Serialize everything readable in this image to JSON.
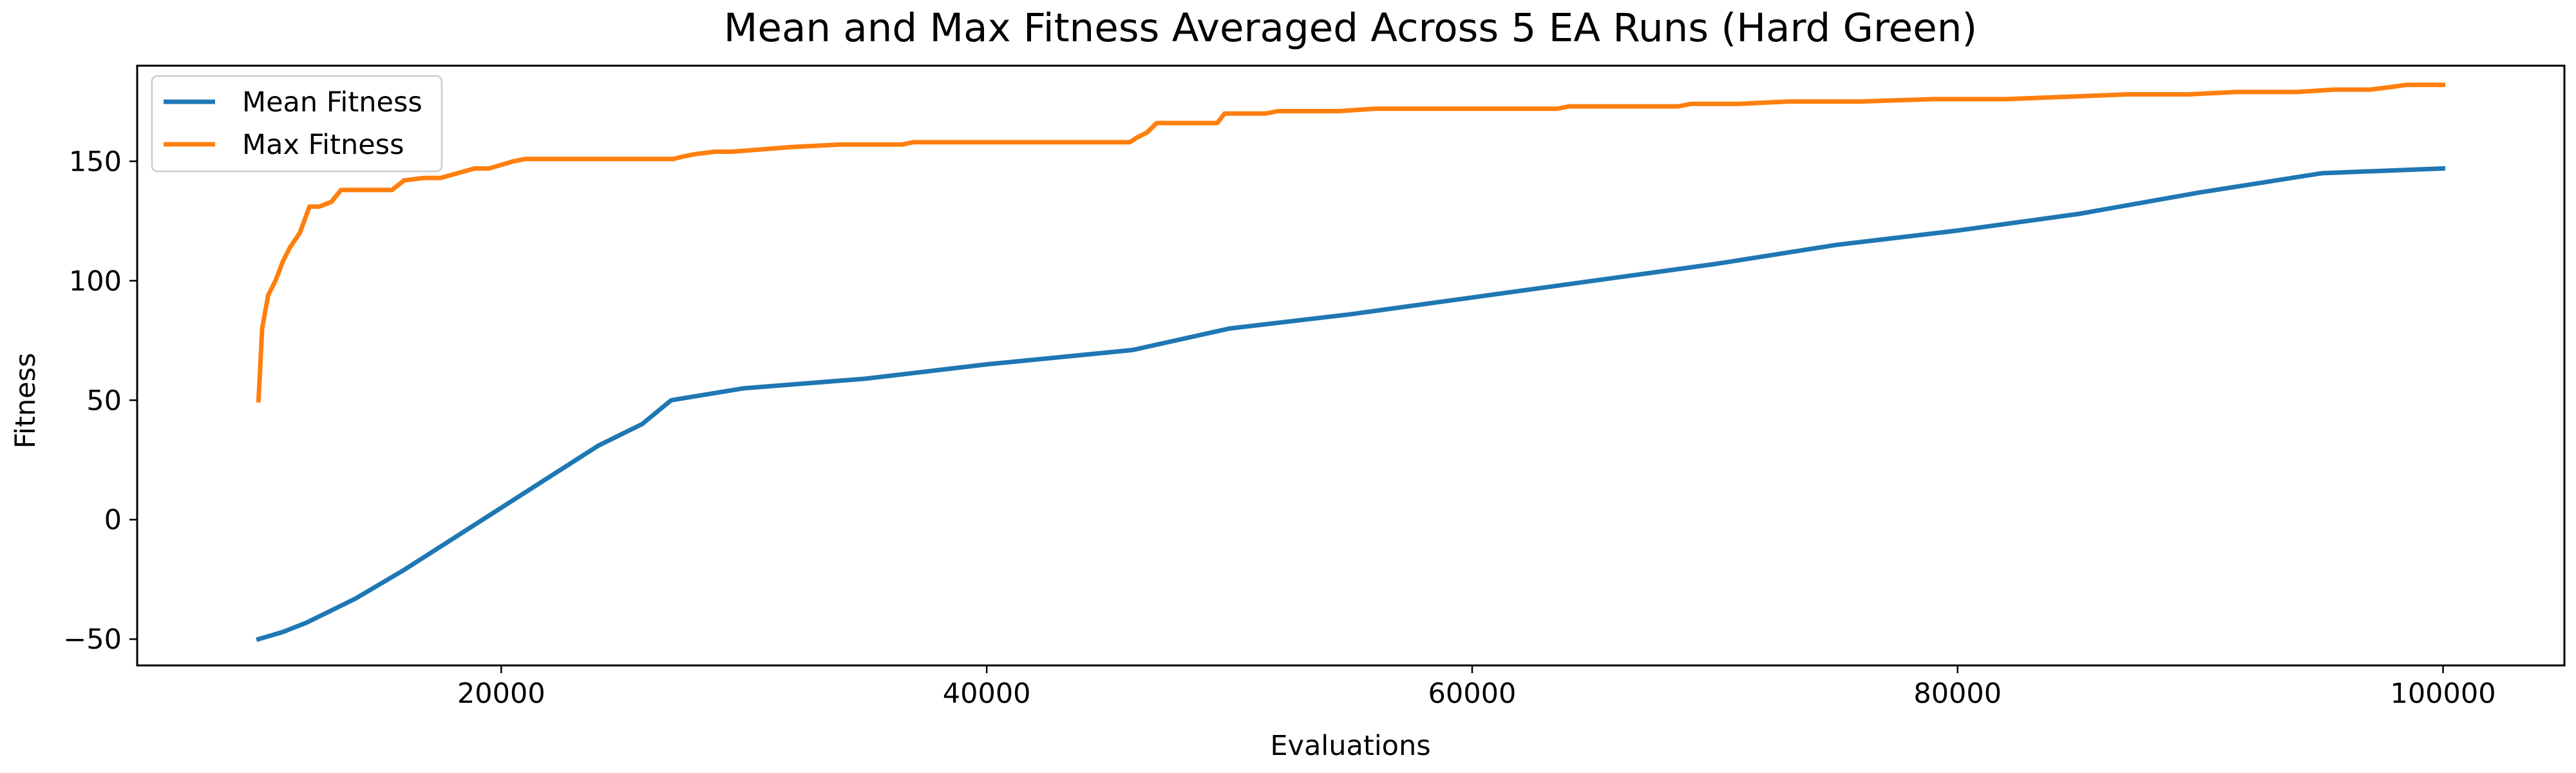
{
  "chart_data": {
    "type": "line",
    "title": "Mean and Max Fitness Averaged Across 5 EA Runs (Hard Green)",
    "xlabel": "Evaluations",
    "ylabel": "Fitness",
    "xlim": [
      5000,
      105000
    ],
    "ylim": [
      -61,
      190
    ],
    "xticks": [
      20000,
      40000,
      60000,
      80000,
      100000
    ],
    "xtick_labels": [
      "20000",
      "40000",
      "60000",
      "80000",
      "100000"
    ],
    "yticks": [
      -50,
      0,
      50,
      100,
      150
    ],
    "ytick_labels": [
      "−50",
      "0",
      "50",
      "100",
      "150"
    ],
    "grid": false,
    "legend_position": "top-left",
    "series": [
      {
        "name": "Mean Fitness",
        "color": "#1f77b4",
        "x": [
          10000,
          11000,
          12000,
          14000,
          16000,
          18000,
          20000,
          22000,
          24000,
          25800,
          27000,
          30000,
          35000,
          40000,
          46000,
          50000,
          55000,
          60000,
          65000,
          70000,
          75000,
          80000,
          85000,
          90000,
          95000,
          100000
        ],
        "y": [
          -50,
          -47,
          -43,
          -33,
          -21,
          -8,
          5,
          18,
          31,
          40,
          50,
          55,
          59,
          65,
          71,
          80,
          86,
          93,
          100,
          107,
          115,
          121,
          128,
          137,
          145,
          147
        ]
      },
      {
        "name": "Max Fitness",
        "color": "#ff7f0e",
        "x": [
          10000,
          10150,
          10400,
          10700,
          11000,
          11300,
          11700,
          12100,
          12500,
          13000,
          13400,
          15500,
          16000,
          16800,
          17500,
          18900,
          19500,
          20500,
          21000,
          27100,
          27500,
          28000,
          28800,
          29500,
          32000,
          34000,
          36500,
          37000,
          45900,
          46200,
          46600,
          47000,
          49500,
          49800,
          51500,
          52000,
          54500,
          56000,
          63500,
          64000,
          68500,
          69000,
          71000,
          73000,
          76000,
          79000,
          80500,
          82000,
          84500,
          87000,
          89500,
          91500,
          94000,
          95500,
          97000,
          97800,
          98500,
          100000
        ],
        "y": [
          50,
          80,
          94,
          100,
          108,
          114,
          120,
          131,
          131,
          133,
          138,
          138,
          142,
          143,
          143,
          147,
          147,
          150,
          151,
          151,
          152,
          153,
          154,
          154,
          156,
          157,
          157,
          158,
          158,
          160,
          162,
          166,
          166,
          170,
          170,
          171,
          171,
          172,
          172,
          173,
          173,
          174,
          174,
          175,
          175,
          176,
          176,
          176,
          177,
          178,
          178,
          179,
          179,
          180,
          180,
          181,
          182,
          182
        ]
      }
    ]
  }
}
